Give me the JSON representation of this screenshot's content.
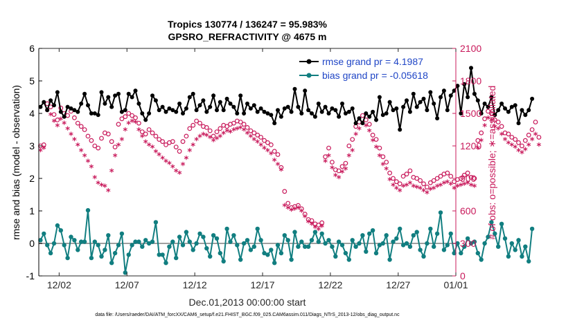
{
  "chart_data": {
    "type": "line",
    "title_line1": "Tropics 130774 / 136247 = 95.983%",
    "title_line2": "GPSRO_REFRACTIVITY @ 4675 m",
    "xlabel": "Dec.01,2013 00:00:00 start",
    "ylabel_left": "rmse and bias (model - observation)",
    "ylabel_right": "# of obs: o=possible; ∗=assimilated",
    "footer": "data file: /Users/raeder/DAI/ATM_forcXX/CAM6_setup/f.e21.FHIST_BGC.f09_025.CAM6assim.011/Diags_NTrS_2013-12/obs_diag_output.nc",
    "xlim": [
      0.5,
      31.25
    ],
    "ylim_left": [
      -1,
      6
    ],
    "ylim_right": [
      0,
      2100
    ],
    "x_ticks": [
      2,
      7,
      12,
      17,
      22,
      27,
      32
    ],
    "x_tick_labels": [
      "12/02",
      "12/07",
      "12/12",
      "12/17",
      "12/22",
      "12/27",
      "01/01"
    ],
    "y_left_ticks": [
      -1,
      0,
      1,
      2,
      3,
      4,
      5,
      6
    ],
    "y_left_tick_labels": [
      "-1",
      "0",
      "1",
      "2",
      "3",
      "4",
      "5",
      "6"
    ],
    "y_right_ticks": [
      0,
      300,
      600,
      900,
      1200,
      1500,
      1800,
      2100
    ],
    "y_right_tick_labels": [
      "0",
      "300",
      "600",
      "900",
      "1200",
      "1500",
      "1800",
      "2100"
    ],
    "colors": {
      "rmse": "#000000",
      "bias": "#117e80",
      "obs": "#c8185a",
      "legend_text": "#1f45c6",
      "zero_line": "#a0a0a0",
      "left_axis": "#000000"
    },
    "legend": [
      {
        "name": "rmse grand pr = 4.1987",
        "series": "rmse"
      },
      {
        "name": "bias grand pr = -0.05618",
        "series": "bias"
      }
    ],
    "legend_position": "top-right",
    "series": [
      {
        "name": "rmse",
        "start": 0.625,
        "step": 0.25,
        "values": [
          4.2,
          4.35,
          4.1,
          4.4,
          4.25,
          4.65,
          4.05,
          3.9,
          4.2,
          4.15,
          4.1,
          4.05,
          4.3,
          4.6,
          4.25,
          4.0,
          4.0,
          3.95,
          4.65,
          4.3,
          4.5,
          4.2,
          4.55,
          4.6,
          4.05,
          4.1,
          4.6,
          4.5,
          4.7,
          4.3,
          4.0,
          3.8,
          4.0,
          4.55,
          4.4,
          4.1,
          4.2,
          4.05,
          4.15,
          4.1,
          4.05,
          4.3,
          4.0,
          4.15,
          4.5,
          4.6,
          4.1,
          4.25,
          4.4,
          4.05,
          4.2,
          4.55,
          4.1,
          4.35,
          4.1,
          4.45,
          4.3,
          4.2,
          4.0,
          4.55,
          4.0,
          4.3,
          4.15,
          4.25,
          4.05,
          4.15,
          4.05,
          4.0,
          3.95,
          3.7,
          4.1,
          3.9,
          4.15,
          4.2,
          4.05,
          4.75,
          4.2,
          4.0,
          4.7,
          4.1,
          4.0,
          3.9,
          4.3,
          4.05,
          4.2,
          4.0,
          4.15,
          4.1,
          3.9,
          4.3,
          4.0,
          4.05,
          4.15,
          3.7,
          3.85,
          3.7,
          4.0,
          3.9,
          4.05,
          3.8,
          4.5,
          3.95,
          4.0,
          4.35,
          4.1,
          4.15,
          3.5,
          4.2,
          4.4,
          4.05,
          4.6,
          4.2,
          4.35,
          4.45,
          4.1,
          4.65,
          4.3,
          3.85,
          4.5,
          4.7,
          4.1,
          4.55,
          4.7,
          4.85,
          4.0,
          4.9,
          4.5,
          5.4,
          4.6,
          4.4,
          4.0,
          4.3,
          4.2,
          4.5,
          3.95,
          4.1,
          4.3,
          4.15,
          4.05,
          4.2,
          4.25,
          3.7,
          4.1,
          3.95,
          4.1,
          4.45
        ]
      },
      {
        "name": "bias",
        "start": 0.625,
        "step": 0.25,
        "values": [
          0.1,
          0.3,
          -0.05,
          -0.3,
          0.0,
          0.55,
          0.4,
          -0.05,
          -0.45,
          0.2,
          0.1,
          -0.2,
          0.05,
          0.05,
          1.02,
          -0.45,
          0.05,
          -0.05,
          -0.4,
          -0.2,
          0.25,
          -0.6,
          -0.3,
          -0.05,
          0.3,
          -0.9,
          -0.35,
          -0.05,
          0.05,
          0.05,
          -0.1,
          0.1,
          0.0,
          0.05,
          0.65,
          -0.35,
          -0.35,
          -0.6,
          -0.1,
          0.05,
          -0.45,
          0.2,
          -0.05,
          0.35,
          0.05,
          -0.2,
          0.0,
          0.3,
          0.2,
          -0.15,
          -0.4,
          0.25,
          0.15,
          -0.3,
          -0.55,
          0.45,
          0.05,
          0.25,
          -0.05,
          -0.5,
          0.0,
          0.1,
          -0.2,
          -0.1,
          0.45,
          0.1,
          -0.3,
          -0.35,
          -0.2,
          -0.6,
          -0.05,
          -0.3,
          0.25,
          0.1,
          -0.5,
          0.35,
          -0.1,
          0.05,
          -0.1,
          -0.1,
          0.1,
          0.35,
          0.05,
          0.3,
          0.0,
          0.1,
          -0.1,
          -0.4,
          0.05,
          -0.05,
          -0.3,
          -0.5,
          0.1,
          -0.1,
          0.0,
          0.25,
          -0.25,
          0.3,
          0.4,
          -0.3,
          -0.05,
          0.0,
          0.25,
          -0.5,
          0.05,
          0.15,
          0.45,
          -0.05,
          0.0,
          -0.1,
          0.25,
          0.35,
          -0.2,
          -0.4,
          0.0,
          0.45,
          -0.1,
          0.3,
          0.95,
          -0.2,
          -0.05,
          0.3,
          -0.3,
          0.0,
          -0.3,
          -0.1,
          0.15,
          0.0,
          0.05,
          -0.3,
          -0.5,
          0.0,
          0.2,
          0.65,
          0.3,
          -0.1,
          0.6,
          0.15,
          -0.4,
          0.0,
          -0.2,
          0.1,
          -0.4,
          -0.1,
          -0.55,
          0.45
        ]
      },
      {
        "name": "possible",
        "start": 0.625,
        "step": 0.25,
        "values": [
          1200,
          1210,
          1590,
          1560,
          1490,
          1440,
          1550,
          1500,
          1480,
          1520,
          1460,
          1410,
          1380,
          1350,
          1290,
          1250,
          1200,
          1180,
          1270,
          1320,
          1310,
          1240,
          1190,
          1400,
          1450,
          1470,
          1500,
          1480,
          1460,
          1410,
          1330,
          1310,
          1350,
          1320,
          1290,
          1260,
          1240,
          1210,
          1230,
          1240,
          1190,
          1150,
          1240,
          1290,
          1360,
          1390,
          1430,
          1410,
          1380,
          1370,
          1340,
          1290,
          1330,
          1360,
          1390,
          1380,
          1400,
          1410,
          1430,
          1420,
          1400,
          1370,
          1340,
          1320,
          1300,
          1280,
          1250,
          1230,
          1210,
          1150,
          1120,
          1000,
          780,
          670,
          630,
          640,
          650,
          620,
          570,
          520,
          510,
          480,
          470,
          490,
          1100,
          1180,
          1050,
          980,
          970,
          1010,
          1040,
          1200,
          1260,
          1380,
          1420,
          1480,
          1440,
          1400,
          1300,
          1260,
          1180,
          1100,
          1050,
          950,
          900,
          870,
          850,
          920,
          940,
          970,
          910,
          900,
          880,
          850,
          820,
          860,
          880,
          900,
          920,
          940,
          950,
          920,
          870,
          890,
          900,
          930,
          950,
          910,
          900,
          1250,
          1320,
          1450,
          1520,
          1500,
          1440,
          1420,
          1380,
          1320,
          1310,
          1280,
          1260,
          1230,
          1200,
          1250,
          1300,
          1350,
          1420,
          1280
        ]
      },
      {
        "name": "assimilated",
        "start": 0.625,
        "step": 0.25,
        "values": [
          1150,
          1170,
          1520,
          1480,
          1420,
          1380,
          1440,
          1400,
          1350,
          1300,
          1250,
          1200,
          1150,
          1100,
          1050,
          1000,
          900,
          850,
          830,
          820,
          780,
          960,
          1100,
          1200,
          1250,
          1340,
          1400,
          1420,
          1410,
          1340,
          1280,
          1230,
          1200,
          1180,
          1140,
          1110,
          1080,
          1050,
          1030,
          1000,
          960,
          940,
          1020,
          1080,
          1150,
          1200,
          1250,
          1280,
          1300,
          1290,
          1270,
          1240,
          1260,
          1280,
          1310,
          1330,
          1320,
          1340,
          1350,
          1360,
          1340,
          1310,
          1280,
          1250,
          1230,
          1200,
          1170,
          1150,
          1120,
          1060,
          1020,
          970,
          640,
          620,
          600,
          610,
          620,
          590,
          540,
          490,
          470,
          440,
          420,
          450,
          1050,
          1100,
          990,
          920,
          900,
          950,
          980,
          1100,
          1150,
          1300,
          1350,
          1400,
          1380,
          1330,
          1240,
          1180,
          1100,
          1020,
          980,
          880,
          830,
          800,
          780,
          820,
          830,
          850,
          820,
          810,
          800,
          780,
          760,
          790,
          800,
          820,
          830,
          850,
          860,
          840,
          800,
          820,
          830,
          840,
          850,
          830,
          820,
          1170,
          1240,
          1380,
          1450,
          1430,
          1370,
          1350,
          1300,
          1250,
          1220,
          1200,
          1180,
          1150,
          1130,
          1160,
          1200,
          1250,
          1300,
          1200
        ]
      }
    ]
  }
}
